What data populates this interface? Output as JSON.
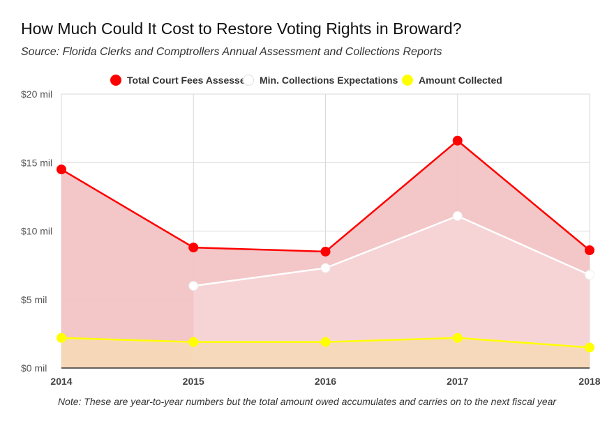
{
  "chart_data": {
    "type": "area",
    "title": "How Much Could It Cost to Restore Voting Rights in Broward?",
    "subtitle": "Source: Florida Clerks and Comptrollers Annual Assessment and Collections Reports",
    "note": "Note: These are year-to-year numbers but the total amount owed accumulates and carries on to the next fiscal year",
    "x": [
      "2014",
      "2015",
      "2016",
      "2017",
      "2018"
    ],
    "ylim": [
      0,
      20
    ],
    "yticks": [
      0,
      5,
      10,
      15,
      20
    ],
    "ytick_labels": [
      "$0 mil",
      "$5 mil",
      "$10 mil",
      "$15 mil",
      "$20 mil"
    ],
    "grid": true,
    "legend_position": "top",
    "series": [
      {
        "name": "Total Court Fees Assessed",
        "color": "#ff0000",
        "fill": "#f2c3c4",
        "values": [
          14.5,
          8.8,
          8.5,
          16.6,
          8.6
        ]
      },
      {
        "name": "Min. Collections Expectations",
        "color": "#ffffff",
        "fill": "#f5d5d7",
        "values": [
          null,
          6.0,
          7.3,
          11.1,
          6.8
        ]
      },
      {
        "name": "Amount Collected",
        "color": "#ffff00",
        "fill": "#f5d9b8",
        "values": [
          2.2,
          1.9,
          1.9,
          2.2,
          1.5
        ]
      }
    ]
  }
}
